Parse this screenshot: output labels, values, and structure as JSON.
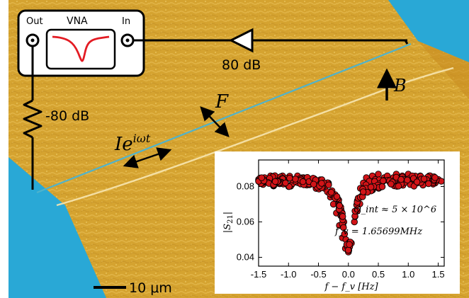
{
  "vna": {
    "out_label": "Out",
    "title": "VNA",
    "in_label": "In"
  },
  "labels": {
    "attenuation_in": "80 dB",
    "attenuation_out": "-80 dB",
    "field": "B",
    "force": "F",
    "current": "Ie",
    "current_exp": "iωt",
    "scale_bar": "10 μm"
  },
  "colors": {
    "substrate": "#d8a531",
    "contacts": "#29a8d6",
    "nanotube": "#4fb3cc",
    "data_points": "#d21418",
    "vna_trace": "#e31b23"
  },
  "chart_data": {
    "type": "scatter",
    "ylabel": "|S21|",
    "xlabel": "f − f_v [Hz]",
    "xlim": [
      -1.5,
      1.6
    ],
    "ylim": [
      0.035,
      0.095
    ],
    "x_ticks": [
      "-1.5",
      "-1.0",
      "-0.5",
      "0.0",
      "0.5",
      "1.0",
      "1.5"
    ],
    "y_ticks": [
      "0.04",
      "0.06",
      "0.08"
    ],
    "annotation_q": "Q_int ≈ 5 × 10^6",
    "annotation_f": "f_v = 1.65699MHz",
    "resonance": {
      "baseline": 0.0835,
      "dip_depth": 0.037,
      "center": 0.0,
      "half_width": 0.12,
      "noise": 0.003
    },
    "points": [
      [
        -1.5,
        0.084
      ],
      [
        -1.45,
        0.082
      ],
      [
        -1.4,
        0.085
      ],
      [
        -1.35,
        0.083
      ],
      [
        -1.3,
        0.086
      ],
      [
        -1.25,
        0.081
      ],
      [
        -1.2,
        0.084
      ],
      [
        -1.15,
        0.082
      ],
      [
        -1.1,
        0.086
      ],
      [
        -1.05,
        0.083
      ],
      [
        -1.0,
        0.085
      ],
      [
        -0.95,
        0.081
      ],
      [
        -0.9,
        0.084
      ],
      [
        -0.85,
        0.086
      ],
      [
        -0.8,
        0.082
      ],
      [
        -0.75,
        0.085
      ],
      [
        -0.7,
        0.083
      ],
      [
        -0.65,
        0.081
      ],
      [
        -0.6,
        0.084
      ],
      [
        -0.55,
        0.082
      ],
      [
        -0.5,
        0.08
      ],
      [
        -0.45,
        0.082
      ],
      [
        -0.4,
        0.079
      ],
      [
        -0.35,
        0.077
      ],
      [
        -0.3,
        0.074
      ],
      [
        -0.25,
        0.07
      ],
      [
        -0.2,
        0.065
      ],
      [
        -0.15,
        0.058
      ],
      [
        -0.1,
        0.051
      ],
      [
        -0.05,
        0.045
      ],
      [
        0.0,
        0.043
      ],
      [
        0.05,
        0.048
      ],
      [
        0.1,
        0.06
      ],
      [
        0.15,
        0.072
      ],
      [
        0.2,
        0.079
      ],
      [
        0.25,
        0.082
      ],
      [
        0.3,
        0.085
      ],
      [
        0.35,
        0.083
      ],
      [
        0.4,
        0.086
      ],
      [
        0.45,
        0.084
      ],
      [
        0.5,
        0.087
      ],
      [
        0.55,
        0.083
      ],
      [
        0.6,
        0.085
      ],
      [
        0.65,
        0.086
      ],
      [
        0.7,
        0.082
      ],
      [
        0.75,
        0.085
      ],
      [
        0.8,
        0.087
      ],
      [
        0.85,
        0.083
      ],
      [
        0.9,
        0.086
      ],
      [
        0.95,
        0.084
      ],
      [
        1.0,
        0.087
      ],
      [
        1.05,
        0.083
      ],
      [
        1.1,
        0.085
      ],
      [
        1.15,
        0.082
      ],
      [
        1.2,
        0.086
      ],
      [
        1.25,
        0.084
      ],
      [
        1.3,
        0.083
      ],
      [
        1.35,
        0.086
      ],
      [
        1.4,
        0.084
      ],
      [
        1.45,
        0.082
      ],
      [
        1.5,
        0.084
      ],
      [
        1.55,
        0.083
      ]
    ]
  }
}
